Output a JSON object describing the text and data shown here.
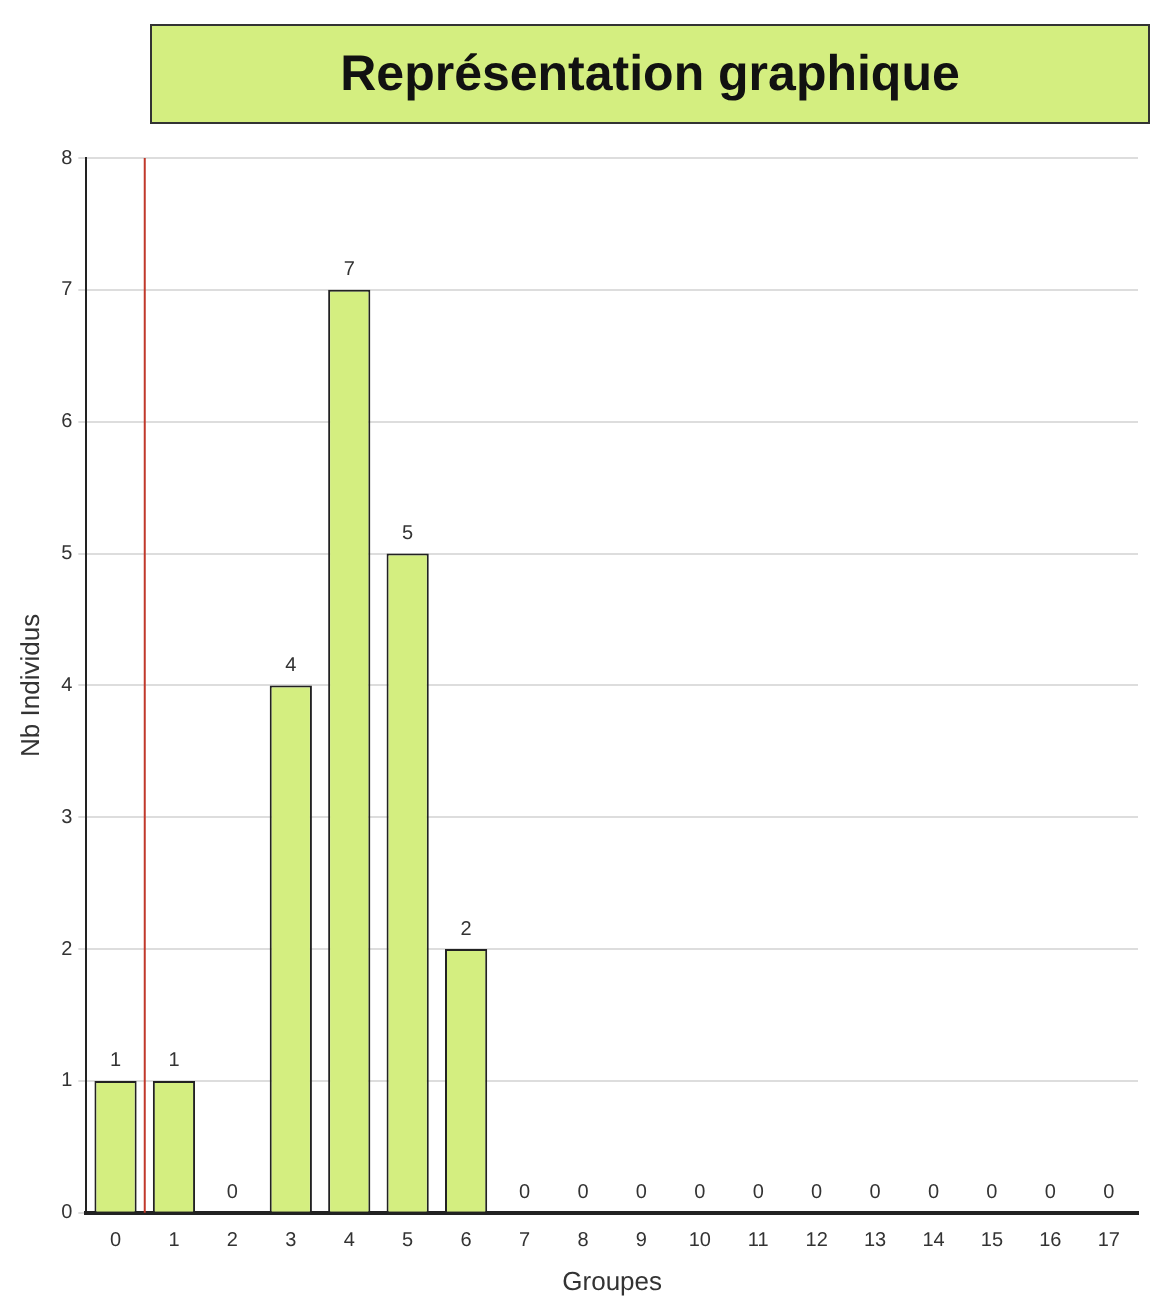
{
  "chart_data": {
    "type": "bar",
    "title": "Représentation graphique",
    "xlabel": "Groupes",
    "ylabel": "Nb Individus",
    "x": [
      0,
      1,
      2,
      3,
      4,
      5,
      6,
      7,
      8,
      9,
      10,
      11,
      12,
      13,
      14,
      15,
      16,
      17
    ],
    "values": [
      1,
      1,
      0,
      4,
      7,
      5,
      2,
      0,
      0,
      0,
      0,
      0,
      0,
      0,
      0,
      0,
      0,
      0
    ],
    "color": "#d4ee80",
    "xlim": [
      -0.5,
      17.5
    ],
    "xticks": [
      0,
      1,
      2,
      3,
      4,
      5,
      6,
      7,
      8,
      9,
      10,
      11,
      12,
      13,
      14,
      15,
      16,
      17
    ],
    "ylim": [
      0,
      8
    ],
    "yticks": [
      0,
      1,
      2,
      3,
      4,
      5,
      6,
      7,
      8
    ],
    "grid": "y",
    "data_labels": true,
    "legend": false,
    "ref_lines": [
      {
        "axis": "x",
        "value": 0.5,
        "color": "#c0392b"
      }
    ]
  }
}
